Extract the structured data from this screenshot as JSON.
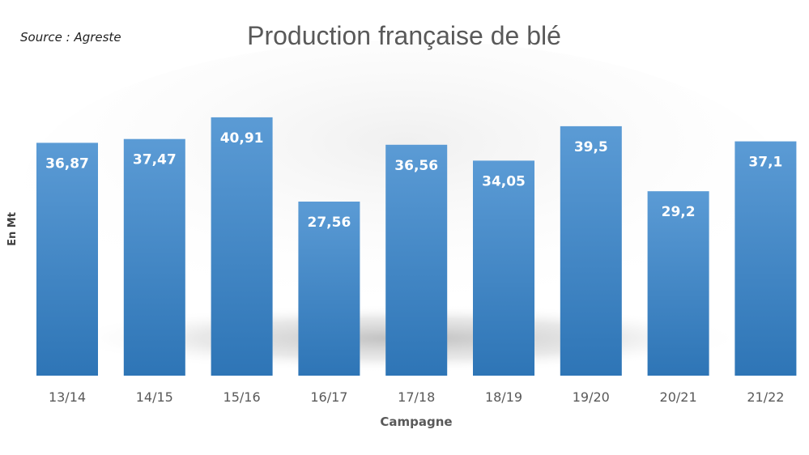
{
  "source_note": "Source : Agreste",
  "chart_data": {
    "type": "bar",
    "title": "Production française de blé",
    "xlabel": "Campagne",
    "ylabel": "En Mt",
    "categories": [
      "13/14",
      "14/15",
      "15/16",
      "16/17",
      "17/18",
      "18/19",
      "19/20",
      "20/21",
      "21/22"
    ],
    "values": [
      36.87,
      37.47,
      40.91,
      27.56,
      36.56,
      34.05,
      39.5,
      29.2,
      37.1
    ],
    "value_labels": [
      "36,87",
      "37,47",
      "40,91",
      "27,56",
      "36,56",
      "34,05",
      "39,5",
      "29,2",
      "37,1"
    ],
    "grid": false,
    "legend": "none",
    "colors": {
      "bar_top": "#5b9bd5",
      "bar_bottom": "#2e75b6",
      "data_label": "#ffffff",
      "title": "#595959"
    }
  }
}
